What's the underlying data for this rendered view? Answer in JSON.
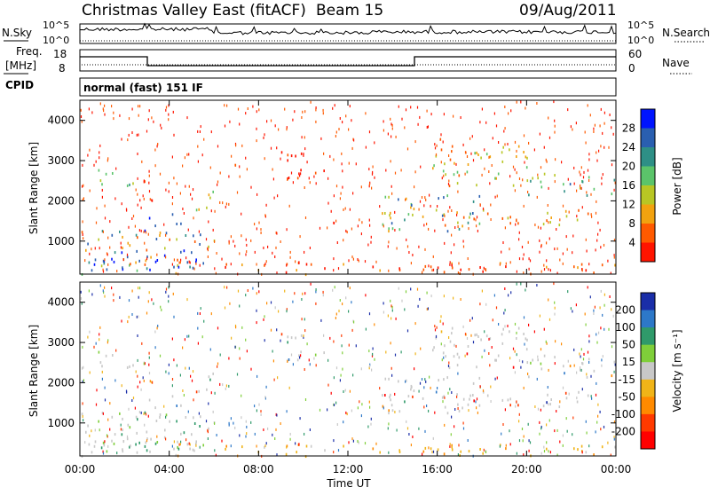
{
  "header": {
    "station": "Christmas Valley East (fitACF)",
    "beam": "Beam 15",
    "date": "09/Aug/2011"
  },
  "top_panels": {
    "left_label_top": "N.Sky",
    "right_label_top": "N.Search",
    "sky_ticks": [
      "10^5",
      "10^0"
    ],
    "search_ticks": [
      "10^5",
      "10^0"
    ],
    "freq_label_line1": "Freq.",
    "freq_label_line2": "[MHz]",
    "freq_ticks": [
      "18",
      "8"
    ],
    "nave_label": "Nave",
    "nave_ticks": [
      "60",
      "0"
    ],
    "cpid_label": "CPID",
    "cpid_text": "normal (fast) 151 IF"
  },
  "chart_data": [
    {
      "type": "heatmap",
      "name": "power-panel",
      "ylabel": "Slant Range [km]",
      "ylim": [
        180,
        4500
      ],
      "yticks": [
        "4000",
        "3000",
        "2000",
        "1000"
      ],
      "colorbar_label": "Power [dB]",
      "colorbar_ticks": [
        "28",
        "24",
        "20",
        "16",
        "12",
        "8",
        "4"
      ],
      "colorbar_colors": [
        "#0014ff",
        "#2a5fb0",
        "#2e8f86",
        "#5bc46a",
        "#b8c624",
        "#f2a20f",
        "#ff5a00",
        "#ff1400"
      ]
    },
    {
      "type": "heatmap",
      "name": "velocity-panel",
      "ylabel": "Slant Range [km]",
      "ylim": [
        180,
        4500
      ],
      "yticks": [
        "4000",
        "3000",
        "2000",
        "1000"
      ],
      "colorbar_label": "Velocity [m s⁻¹]",
      "colorbar_ticks": [
        "200",
        "100",
        "50",
        "15",
        "-15",
        "-50",
        "-100",
        "-200"
      ],
      "colorbar_colors": [
        "#1a2ea8",
        "#2d78c8",
        "#2f9a6a",
        "#7fcf3a",
        "#c8c8c8",
        "#f0b418",
        "#ff8a00",
        "#ff3a00",
        "#ff0000"
      ],
      "xlabel": "Time UT",
      "xticks": [
        "00:00",
        "04:00",
        "08:00",
        "12:00",
        "16:00",
        "20:00",
        "00:00"
      ]
    }
  ]
}
